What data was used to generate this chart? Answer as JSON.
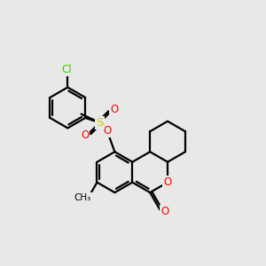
{
  "background_color": "#e8e8e8",
  "atom_colors": {
    "O": "#ff0000",
    "S": "#cccc00",
    "Cl": "#44cc00",
    "C": "#000000"
  },
  "bond_color": "#000000",
  "bond_lw": 1.6,
  "figsize": [
    3.0,
    3.0
  ],
  "dpi": 100
}
